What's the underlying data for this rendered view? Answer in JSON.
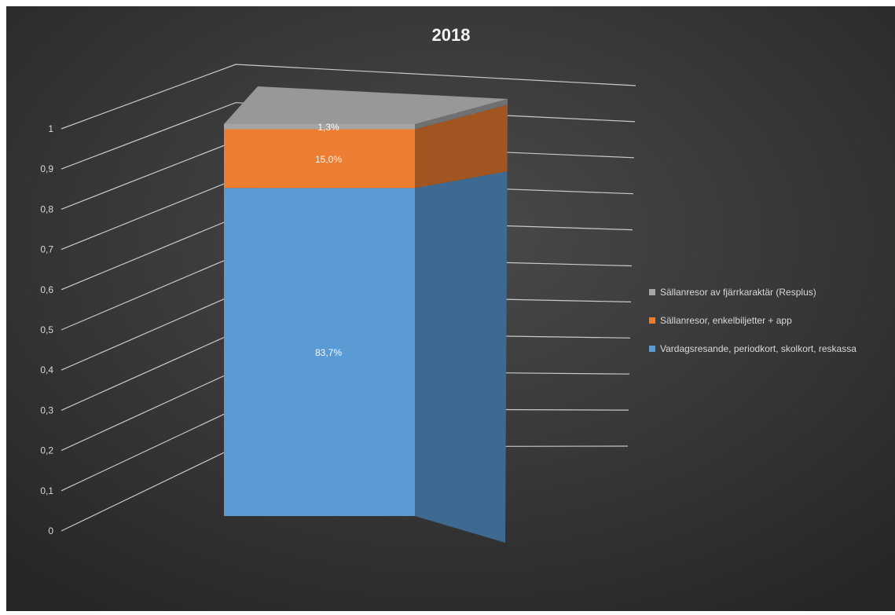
{
  "chart_data": {
    "type": "bar",
    "title": "2018",
    "categories": [
      ""
    ],
    "series": [
      {
        "name": "Vardagsresande, periodkort, skolkort, reskassa",
        "values": [
          0.837
        ],
        "label": "83,7%",
        "color": "#5b9bd5"
      },
      {
        "name": "Sällanresor, enkelbiljetter + app",
        "values": [
          0.15
        ],
        "label": "15,0%",
        "color": "#ed7d31"
      },
      {
        "name": "Sällanresor av fjärrkaraktär (Resplus)",
        "values": [
          0.013
        ],
        "label": "1,3%",
        "color": "#a5a5a5"
      }
    ],
    "y_ticks": [
      "0",
      "0,1",
      "0,2",
      "0,3",
      "0,4",
      "0,5",
      "0,6",
      "0,7",
      "0,8",
      "0,9",
      "1"
    ],
    "ylim": [
      0,
      1
    ],
    "stacked": true,
    "grid": true,
    "legend_position": "right",
    "background": "#3a3a3a"
  }
}
